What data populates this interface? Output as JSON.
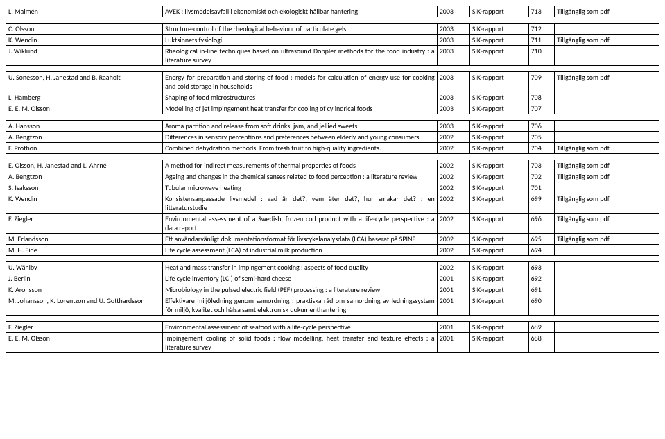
{
  "groups": [
    [
      {
        "author": "L. Malmén",
        "title": "AVEK : livsmedelsavfall i ekonomiskt och ekologiskt hållbar hantering",
        "year": "2003",
        "series": "SIK-rapport",
        "num": "713",
        "avail": "Tillgänglig som pdf"
      }
    ],
    [
      {
        "author": "C. Olsson",
        "title": "Structure-control of the rheological behaviour of particulate gels.",
        "year": "2003",
        "series": "SIK-rapport",
        "num": "712",
        "avail": ""
      },
      {
        "author": "K. Wendin",
        "title": "Luktsinnets fysiologi",
        "year": "2003",
        "series": "SIK-rapport",
        "num": "711",
        "avail": "Tillgänglig som pdf"
      },
      {
        "author": "J. Wiklund",
        "title": "Rheological in-line techniques based on ultrasound Doppler methods for the food industry : a literature survey",
        "year": "2003",
        "series": "SIK-rapport",
        "num": "710",
        "avail": ""
      }
    ],
    [
      {
        "author": "U. Sonesson, H. Janestad and B. Raaholt",
        "title": "Energy for preparation and storing of food : models for calculation of energy use for cooking and cold storage in households",
        "year": "2003",
        "series": "SIK-rapport",
        "num": "709",
        "avail": "Tillgänglig som pdf"
      },
      {
        "author": "L. Hamberg",
        "title": "Shaping of food microstructures",
        "year": "2003",
        "series": "SIK-rapport",
        "num": "708",
        "avail": ""
      },
      {
        "author": "E. E. M. Olsson",
        "title": "Modelling of jet impingement heat transfer for cooling of cylindrical foods",
        "year": "2003",
        "series": "SIK-rapport",
        "num": "707",
        "avail": ""
      }
    ],
    [
      {
        "author": "A. Hansson",
        "title": "Aroma partition and release from soft drinks, jam, and jellied sweets",
        "year": "2003",
        "series": "SIK-rapport",
        "num": "706",
        "avail": ""
      },
      {
        "author": "A. Bengtzon",
        "title": "Differences in sensory perceptions and preferences between elderly and young consumers.",
        "year": "2002",
        "series": "SIK-rapport",
        "num": "705",
        "avail": ""
      },
      {
        "author": "F. Prothon",
        "title": "Combined dehydration methods. From fresh fruit to high-quality ingredients.",
        "year": "2002",
        "series": "SIK-rapport",
        "num": "704",
        "avail": "Tillgänglig som pdf"
      }
    ],
    [
      {
        "author": "E. Olsson, H. Janestad and L. Ahrné",
        "title": "A method for indirect measurements of thermal properties of foods",
        "year": "2002",
        "series": "SIK-rapport",
        "num": "703",
        "avail": "Tillgänglig som pdf"
      },
      {
        "author": "A. Bengtzon",
        "title": "Ageing and changes in the chemical senses related to food perception : a literature review",
        "year": "2002",
        "series": "SIK-rapport",
        "num": "702",
        "avail": "Tillgänglig som pdf"
      },
      {
        "author": "S. Isaksson",
        "title": "Tubular microwave heating",
        "year": "2002",
        "series": "SIK-rapport",
        "num": "701",
        "avail": ""
      },
      {
        "author": "K. Wendin",
        "title": "Konsistensanpassade livsmedel : vad är det?, vem äter det?, hur smakar det? : en litteraturstudie",
        "year": "2002",
        "series": "SIK-rapport",
        "num": "699",
        "avail": "Tillgänglig som pdf"
      },
      {
        "author": "F. Ziegler",
        "title": "Environmental assessment of a Swedish, frozen cod product with a life-cycle perspective : a data report",
        "year": "2002",
        "series": "SIK-rapport",
        "num": "696",
        "avail": "Tillgänglig som pdf"
      },
      {
        "author": "M. Erlandsson",
        "title": "Ett användarvänligt dokumentationsformat för livscykelanalysdata (LCA) baserat på SPINE",
        "year": "2002",
        "series": "SIK-rapport",
        "num": "695",
        "avail": "Tillgänglig som pdf"
      },
      {
        "author": "M. H. Eide",
        "title": "Life cycle assessment (LCA) of industrial milk production",
        "year": "2002",
        "series": "SIK-rapport",
        "num": "694",
        "avail": ""
      }
    ],
    [
      {
        "author": "U. Wählby",
        "title": "Heat and mass transfer in impingement cooking : aspects of food quality",
        "year": "2002",
        "series": "SIK-rapport",
        "num": "693",
        "avail": ""
      },
      {
        "author": "J. Berlin",
        "title": "Life cycle inventory (LCI) of semi-hard cheese",
        "year": "2001",
        "series": "SIK-rapport",
        "num": "692",
        "avail": ""
      },
      {
        "author": "K. Aronsson",
        "title": "Microbiology in the pulsed electric field (PEF) processing : a literature review",
        "year": "2001",
        "series": "SIK-rapport",
        "num": "691",
        "avail": ""
      },
      {
        "author": "M. Johansson, K. Lorentzon and U. Gotthardsson",
        "title": "Effektivare miljöledning genom samordning : praktiska råd om samordning av ledningssystem för miljö, kvalitet och hälsa samt elektronisk dokumenthantering",
        "year": "2001",
        "series": "SIK-rapport",
        "num": "690",
        "avail": ""
      }
    ],
    [
      {
        "author": "F. Ziegler",
        "title": "Environmental assessment of seafood with a life-cycle perspective",
        "year": "2001",
        "series": "SIK-rapport",
        "num": "689",
        "avail": ""
      },
      {
        "author": "E. E. M. Olsson",
        "title": "Impingement cooling of solid foods : flow modelling, heat transfer and texture effects : a literature survey",
        "year": "2001",
        "series": "SIK-rapport",
        "num": "688",
        "avail": ""
      }
    ]
  ]
}
